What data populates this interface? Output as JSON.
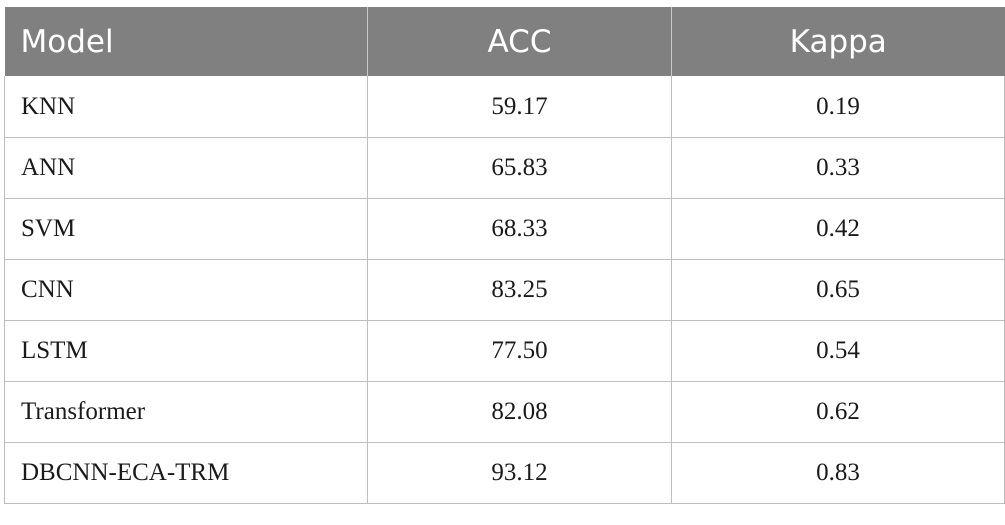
{
  "table": {
    "headers": [
      "Model",
      "ACC",
      "Kappa"
    ],
    "rows": [
      {
        "model": "KNN",
        "acc": "59.17",
        "kappa": "0.19"
      },
      {
        "model": "ANN",
        "acc": "65.83",
        "kappa": "0.33"
      },
      {
        "model": "SVM",
        "acc": "68.33",
        "kappa": "0.42"
      },
      {
        "model": "CNN",
        "acc": "83.25",
        "kappa": "0.65"
      },
      {
        "model": "LSTM",
        "acc": "77.50",
        "kappa": "0.54"
      },
      {
        "model": "Transformer",
        "acc": "82.08",
        "kappa": "0.62"
      },
      {
        "model": "DBCNN-ECA-TRM",
        "acc": "93.12",
        "kappa": "0.83"
      }
    ]
  },
  "colors": {
    "header_background": "#808080",
    "header_text": "#ffffff",
    "grid_line": "#bdbdbd",
    "body_text": "#1a1a1a"
  }
}
